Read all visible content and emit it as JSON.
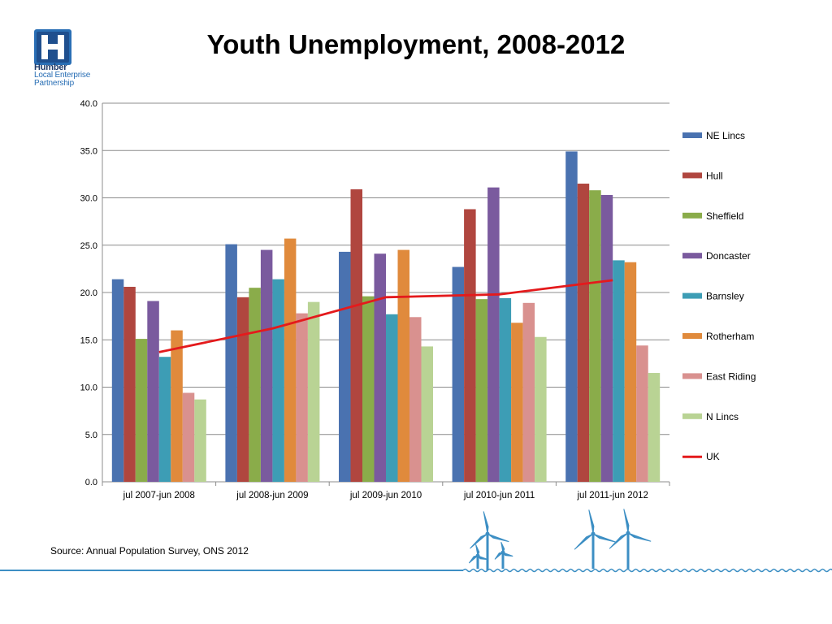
{
  "page": {
    "title": "Youth Unemployment, 2008-2012",
    "source": "Source: Annual Population Survey, ONS 2012",
    "logo": {
      "brand": "Humber",
      "line1": "Local Enterprise",
      "line2": "Partnership"
    }
  },
  "chart_data": {
    "type": "bar",
    "title": "Youth Unemployment, 2008-2012",
    "xlabel": "",
    "ylabel": "",
    "ylim": [
      0,
      40
    ],
    "yticks": [
      "0.0",
      "5.0",
      "10.0",
      "15.0",
      "20.0",
      "25.0",
      "30.0",
      "35.0",
      "40.0"
    ],
    "grid": true,
    "legend": "right",
    "categories": [
      "jul 2007-jun 2008",
      "jul 2008-jun 2009",
      "jul 2009-jun 2010",
      "jul 2010-jun 2011",
      "jul 2011-jun 2012"
    ],
    "series": [
      {
        "name": "NE Lincs",
        "color": "#4a72b0",
        "values": [
          21.4,
          25.1,
          24.3,
          22.7,
          34.9
        ]
      },
      {
        "name": "Hull",
        "color": "#b0463f",
        "values": [
          20.6,
          19.5,
          30.9,
          28.8,
          31.5
        ]
      },
      {
        "name": "Sheffield",
        "color": "#8aac4a",
        "values": [
          15.1,
          20.5,
          19.6,
          19.3,
          30.8
        ]
      },
      {
        "name": "Doncaster",
        "color": "#7a5a9e",
        "values": [
          19.1,
          24.5,
          24.1,
          31.1,
          30.3
        ]
      },
      {
        "name": "Barnsley",
        "color": "#3d9db5",
        "values": [
          13.2,
          21.4,
          17.7,
          19.4,
          23.4
        ]
      },
      {
        "name": "Rotherham",
        "color": "#e08a3c",
        "values": [
          16.0,
          25.7,
          24.5,
          16.8,
          23.2
        ]
      },
      {
        "name": "East Riding",
        "color": "#d9918f",
        "values": [
          9.4,
          17.8,
          17.4,
          18.9,
          14.4
        ]
      },
      {
        "name": "N Lincs",
        "color": "#b9d394",
        "values": [
          8.7,
          19.0,
          14.3,
          15.3,
          11.5
        ]
      }
    ],
    "line_series": {
      "name": "UK",
      "color": "#e41a1c",
      "values": [
        13.7,
        16.2,
        19.5,
        19.8,
        21.3
      ]
    }
  }
}
